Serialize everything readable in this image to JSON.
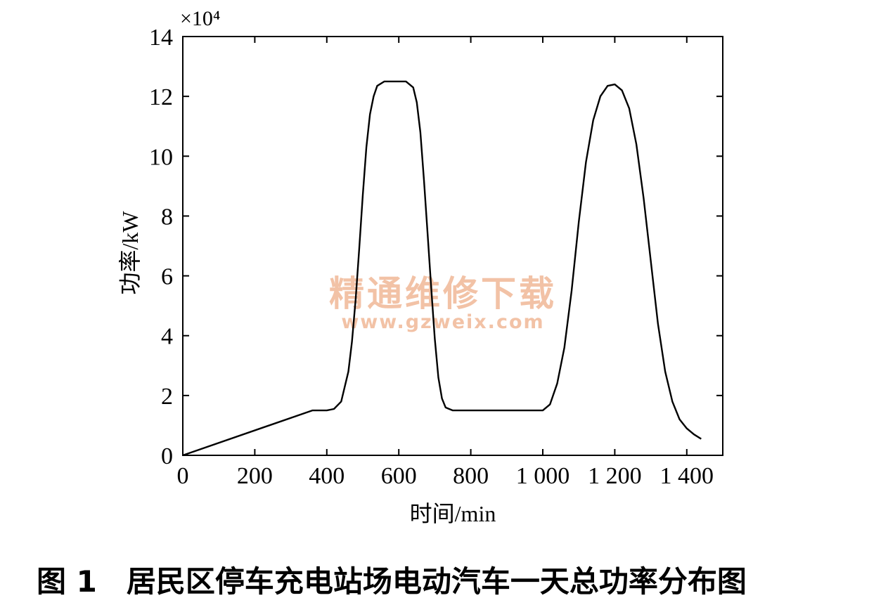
{
  "chart_data": {
    "type": "line",
    "title": "",
    "xlabel": "时间/min",
    "ylabel": "功率/kW",
    "y_multiplier": "×10⁴",
    "xlim": [
      0,
      1500
    ],
    "ylim": [
      0,
      14
    ],
    "x_ticks": [
      0,
      200,
      400,
      600,
      800,
      1000,
      1200,
      1400
    ],
    "x_tick_labels": [
      "0",
      "200",
      "400",
      "600",
      "800",
      "1 000",
      "1 200",
      "1 400"
    ],
    "y_ticks": [
      0,
      2,
      4,
      6,
      8,
      10,
      12,
      14
    ],
    "y_tick_labels": [
      "0",
      "2",
      "4",
      "6",
      "8",
      "10",
      "12",
      "14"
    ],
    "grid": false,
    "series": [
      {
        "points": [
          [
            0,
            0
          ],
          [
            360,
            1.5
          ],
          [
            400,
            1.5
          ],
          [
            420,
            1.55
          ],
          [
            440,
            1.8
          ],
          [
            460,
            2.8
          ],
          [
            470,
            3.8
          ],
          [
            480,
            5.2
          ],
          [
            490,
            6.9
          ],
          [
            500,
            8.7
          ],
          [
            510,
            10.3
          ],
          [
            520,
            11.4
          ],
          [
            530,
            12.0
          ],
          [
            540,
            12.35
          ],
          [
            560,
            12.5
          ],
          [
            600,
            12.5
          ],
          [
            620,
            12.5
          ],
          [
            640,
            12.3
          ],
          [
            650,
            11.8
          ],
          [
            660,
            10.8
          ],
          [
            670,
            9.2
          ],
          [
            680,
            7.4
          ],
          [
            690,
            5.6
          ],
          [
            700,
            3.9
          ],
          [
            710,
            2.6
          ],
          [
            720,
            1.9
          ],
          [
            730,
            1.6
          ],
          [
            750,
            1.5
          ],
          [
            1000,
            1.5
          ],
          [
            1020,
            1.7
          ],
          [
            1040,
            2.4
          ],
          [
            1060,
            3.6
          ],
          [
            1080,
            5.5
          ],
          [
            1100,
            7.8
          ],
          [
            1120,
            9.8
          ],
          [
            1140,
            11.2
          ],
          [
            1160,
            12.0
          ],
          [
            1180,
            12.35
          ],
          [
            1200,
            12.4
          ],
          [
            1220,
            12.2
          ],
          [
            1240,
            11.6
          ],
          [
            1260,
            10.4
          ],
          [
            1280,
            8.6
          ],
          [
            1300,
            6.5
          ],
          [
            1320,
            4.4
          ],
          [
            1340,
            2.8
          ],
          [
            1360,
            1.8
          ],
          [
            1380,
            1.2
          ],
          [
            1400,
            0.9
          ],
          [
            1420,
            0.7
          ],
          [
            1440,
            0.55
          ]
        ]
      }
    ]
  },
  "watermark": {
    "line1": "精通维修下载",
    "line2": "www.gzweix.com"
  },
  "caption": "图 1　居民区停车充电站场电动汽车一天总功率分布图",
  "colors": {
    "line": "#000000",
    "watermark": "#f2c2a6"
  }
}
